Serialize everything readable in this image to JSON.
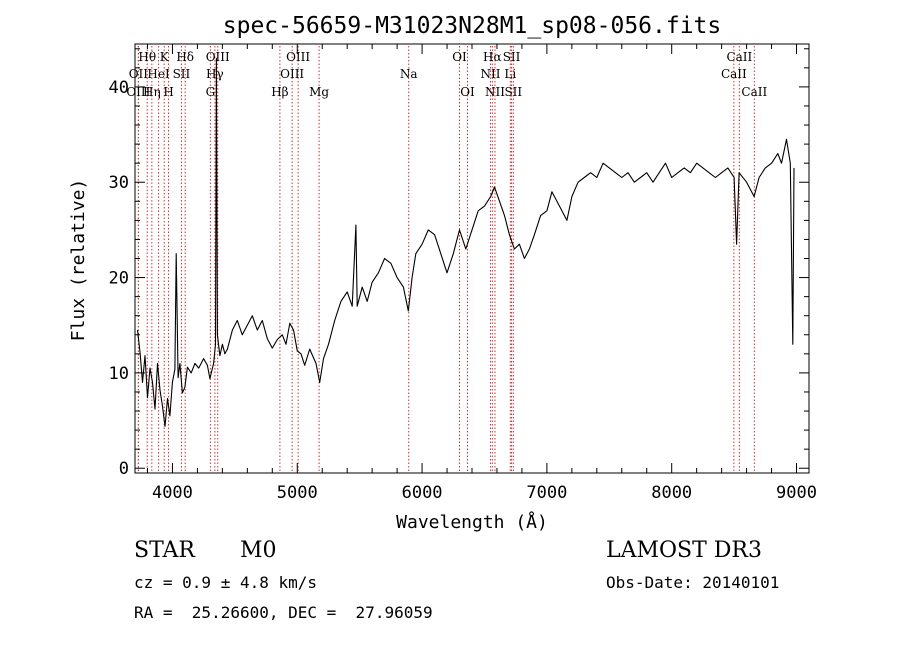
{
  "chart_data": {
    "type": "line",
    "title": "spec-56659-M31023N28M1_sp08-056.fits",
    "xlabel": "Wavelength (Å)",
    "ylabel": "Flux (relative)",
    "xlim": [
      3700,
      9100
    ],
    "ylim": [
      -0.5,
      44.5
    ],
    "xticks": [
      4000,
      5000,
      6000,
      7000,
      8000,
      9000
    ],
    "yticks": [
      0,
      10,
      20,
      30,
      40
    ],
    "x_minor_step": 200,
    "y_minor_step": 2,
    "line_color": "#000000",
    "marker_color": "#cc3333",
    "series": [
      {
        "name": "flux",
        "points": [
          [
            3720,
            14.5
          ],
          [
            3740,
            12.2
          ],
          [
            3760,
            9.0
          ],
          [
            3780,
            11.8
          ],
          [
            3800,
            7.4
          ],
          [
            3820,
            10.5
          ],
          [
            3840,
            9.0
          ],
          [
            3860,
            6.2
          ],
          [
            3880,
            11.0
          ],
          [
            3900,
            8.2
          ],
          [
            3920,
            6.5
          ],
          [
            3940,
            4.4
          ],
          [
            3960,
            7.3
          ],
          [
            3980,
            5.5
          ],
          [
            4000,
            9.0
          ],
          [
            4020,
            10.4
          ],
          [
            4030,
            22.5
          ],
          [
            4045,
            9.5
          ],
          [
            4060,
            11.0
          ],
          [
            4080,
            7.9
          ],
          [
            4100,
            8.5
          ],
          [
            4120,
            10.6
          ],
          [
            4150,
            10.0
          ],
          [
            4180,
            11.0
          ],
          [
            4210,
            10.5
          ],
          [
            4250,
            11.5
          ],
          [
            4280,
            10.8
          ],
          [
            4300,
            9.4
          ],
          [
            4330,
            11.0
          ],
          [
            4345,
            13.0
          ],
          [
            4352,
            43.0
          ],
          [
            4360,
            14.0
          ],
          [
            4380,
            11.8
          ],
          [
            4400,
            13.0
          ],
          [
            4420,
            12.0
          ],
          [
            4440,
            12.5
          ],
          [
            4480,
            14.5
          ],
          [
            4520,
            15.5
          ],
          [
            4560,
            14.0
          ],
          [
            4600,
            15.0
          ],
          [
            4640,
            16.0
          ],
          [
            4680,
            14.5
          ],
          [
            4720,
            15.5
          ],
          [
            4760,
            13.6
          ],
          [
            4800,
            12.6
          ],
          [
            4840,
            13.5
          ],
          [
            4880,
            14.0
          ],
          [
            4910,
            13.0
          ],
          [
            4940,
            15.2
          ],
          [
            4970,
            14.5
          ],
          [
            5000,
            12.3
          ],
          [
            5030,
            12.0
          ],
          [
            5060,
            10.8
          ],
          [
            5100,
            12.5
          ],
          [
            5150,
            11.0
          ],
          [
            5180,
            9.0
          ],
          [
            5210,
            11.5
          ],
          [
            5250,
            13.0
          ],
          [
            5300,
            15.5
          ],
          [
            5350,
            17.5
          ],
          [
            5400,
            18.5
          ],
          [
            5440,
            17.0
          ],
          [
            5470,
            25.5
          ],
          [
            5480,
            17.0
          ],
          [
            5520,
            19.0
          ],
          [
            5560,
            17.5
          ],
          [
            5600,
            19.5
          ],
          [
            5650,
            20.5
          ],
          [
            5700,
            22.0
          ],
          [
            5750,
            21.5
          ],
          [
            5800,
            20.0
          ],
          [
            5850,
            19.0
          ],
          [
            5890,
            16.5
          ],
          [
            5920,
            20.0
          ],
          [
            5950,
            22.5
          ],
          [
            6000,
            23.5
          ],
          [
            6050,
            25.0
          ],
          [
            6100,
            24.5
          ],
          [
            6150,
            22.5
          ],
          [
            6200,
            20.5
          ],
          [
            6250,
            22.5
          ],
          [
            6300,
            25.0
          ],
          [
            6350,
            23.0
          ],
          [
            6400,
            25.0
          ],
          [
            6450,
            27.0
          ],
          [
            6500,
            27.5
          ],
          [
            6550,
            28.5
          ],
          [
            6580,
            29.5
          ],
          [
            6620,
            28.0
          ],
          [
            6660,
            26.5
          ],
          [
            6700,
            24.5
          ],
          [
            6740,
            23.0
          ],
          [
            6780,
            23.5
          ],
          [
            6820,
            22.0
          ],
          [
            6860,
            23.0
          ],
          [
            6900,
            24.5
          ],
          [
            6950,
            26.5
          ],
          [
            7000,
            27.0
          ],
          [
            7040,
            29.0
          ],
          [
            7080,
            28.0
          ],
          [
            7120,
            27.0
          ],
          [
            7160,
            26.0
          ],
          [
            7200,
            28.5
          ],
          [
            7250,
            30.0
          ],
          [
            7300,
            30.5
          ],
          [
            7350,
            31.0
          ],
          [
            7400,
            30.5
          ],
          [
            7450,
            32.0
          ],
          [
            7500,
            31.5
          ],
          [
            7550,
            31.0
          ],
          [
            7600,
            30.5
          ],
          [
            7650,
            31.0
          ],
          [
            7700,
            30.0
          ],
          [
            7750,
            30.5
          ],
          [
            7800,
            31.0
          ],
          [
            7850,
            30.0
          ],
          [
            7900,
            31.0
          ],
          [
            7950,
            32.0
          ],
          [
            8000,
            30.5
          ],
          [
            8050,
            31.0
          ],
          [
            8100,
            31.5
          ],
          [
            8150,
            31.0
          ],
          [
            8200,
            32.0
          ],
          [
            8250,
            31.5
          ],
          [
            8300,
            31.0
          ],
          [
            8350,
            30.5
          ],
          [
            8400,
            31.0
          ],
          [
            8450,
            31.5
          ],
          [
            8500,
            30.5
          ],
          [
            8520,
            23.5
          ],
          [
            8540,
            31.0
          ],
          [
            8600,
            30.0
          ],
          [
            8660,
            28.5
          ],
          [
            8700,
            30.5
          ],
          [
            8750,
            31.5
          ],
          [
            8800,
            32.0
          ],
          [
            8850,
            33.0
          ],
          [
            8880,
            32.0
          ],
          [
            8920,
            34.5
          ],
          [
            8950,
            32.0
          ],
          [
            8970,
            13.0
          ],
          [
            8980,
            31.5
          ]
        ]
      }
    ],
    "lines": [
      {
        "label": "Hθ",
        "x": 3798,
        "row": 0
      },
      {
        "label": "OII",
        "x": 3727,
        "row": 1
      },
      {
        "label": "OIII",
        "x": 3727,
        "row": 2
      },
      {
        "label": "K",
        "x": 3934,
        "row": 0
      },
      {
        "label": "HeI",
        "x": 3889,
        "row": 1
      },
      {
        "label": "Hη",
        "x": 3835,
        "row": 2
      },
      {
        "label": "SII",
        "x": 4072,
        "row": 1
      },
      {
        "label": "H",
        "x": 3969,
        "row": 2
      },
      {
        "label": "Hδ",
        "x": 4102,
        "row": 0
      },
      {
        "label": "OIII",
        "x": 4363,
        "row": 0
      },
      {
        "label": "Hγ",
        "x": 4340,
        "row": 1
      },
      {
        "label": "G",
        "x": 4304,
        "row": 2
      },
      {
        "label": "OIII",
        "x": 5007,
        "row": 0
      },
      {
        "label": "OIII",
        "x": 4959,
        "row": 1
      },
      {
        "label": "Hβ",
        "x": 4861,
        "row": 2
      },
      {
        "label": "Mg",
        "x": 5175,
        "row": 2
      },
      {
        "label": "Na",
        "x": 5893,
        "row": 1
      },
      {
        "label": "OI",
        "x": 6300,
        "row": 0
      },
      {
        "label": "OI",
        "x": 6364,
        "row": 2
      },
      {
        "label": "Hα",
        "x": 6563,
        "row": 0
      },
      {
        "label": "NII",
        "x": 6548,
        "row": 1
      },
      {
        "label": "NII",
        "x": 6584,
        "row": 2
      },
      {
        "label": "SII",
        "x": 6717,
        "row": 0
      },
      {
        "label": "Li",
        "x": 6707,
        "row": 1
      },
      {
        "label": "SII",
        "x": 6731,
        "row": 2
      },
      {
        "label": "CaII",
        "x": 8542,
        "row": 0
      },
      {
        "label": "CaII",
        "x": 8498,
        "row": 1
      },
      {
        "label": "CaII",
        "x": 8662,
        "row": 2
      }
    ]
  },
  "info": {
    "class_label": "STAR",
    "subclass": "M0",
    "survey": "LAMOST DR3",
    "redshift": "cz = 0.9 ± 4.8 km/s",
    "obs_date": "Obs-Date: 20140101",
    "coords": "RA =  25.26600, DEC =  27.96059"
  }
}
